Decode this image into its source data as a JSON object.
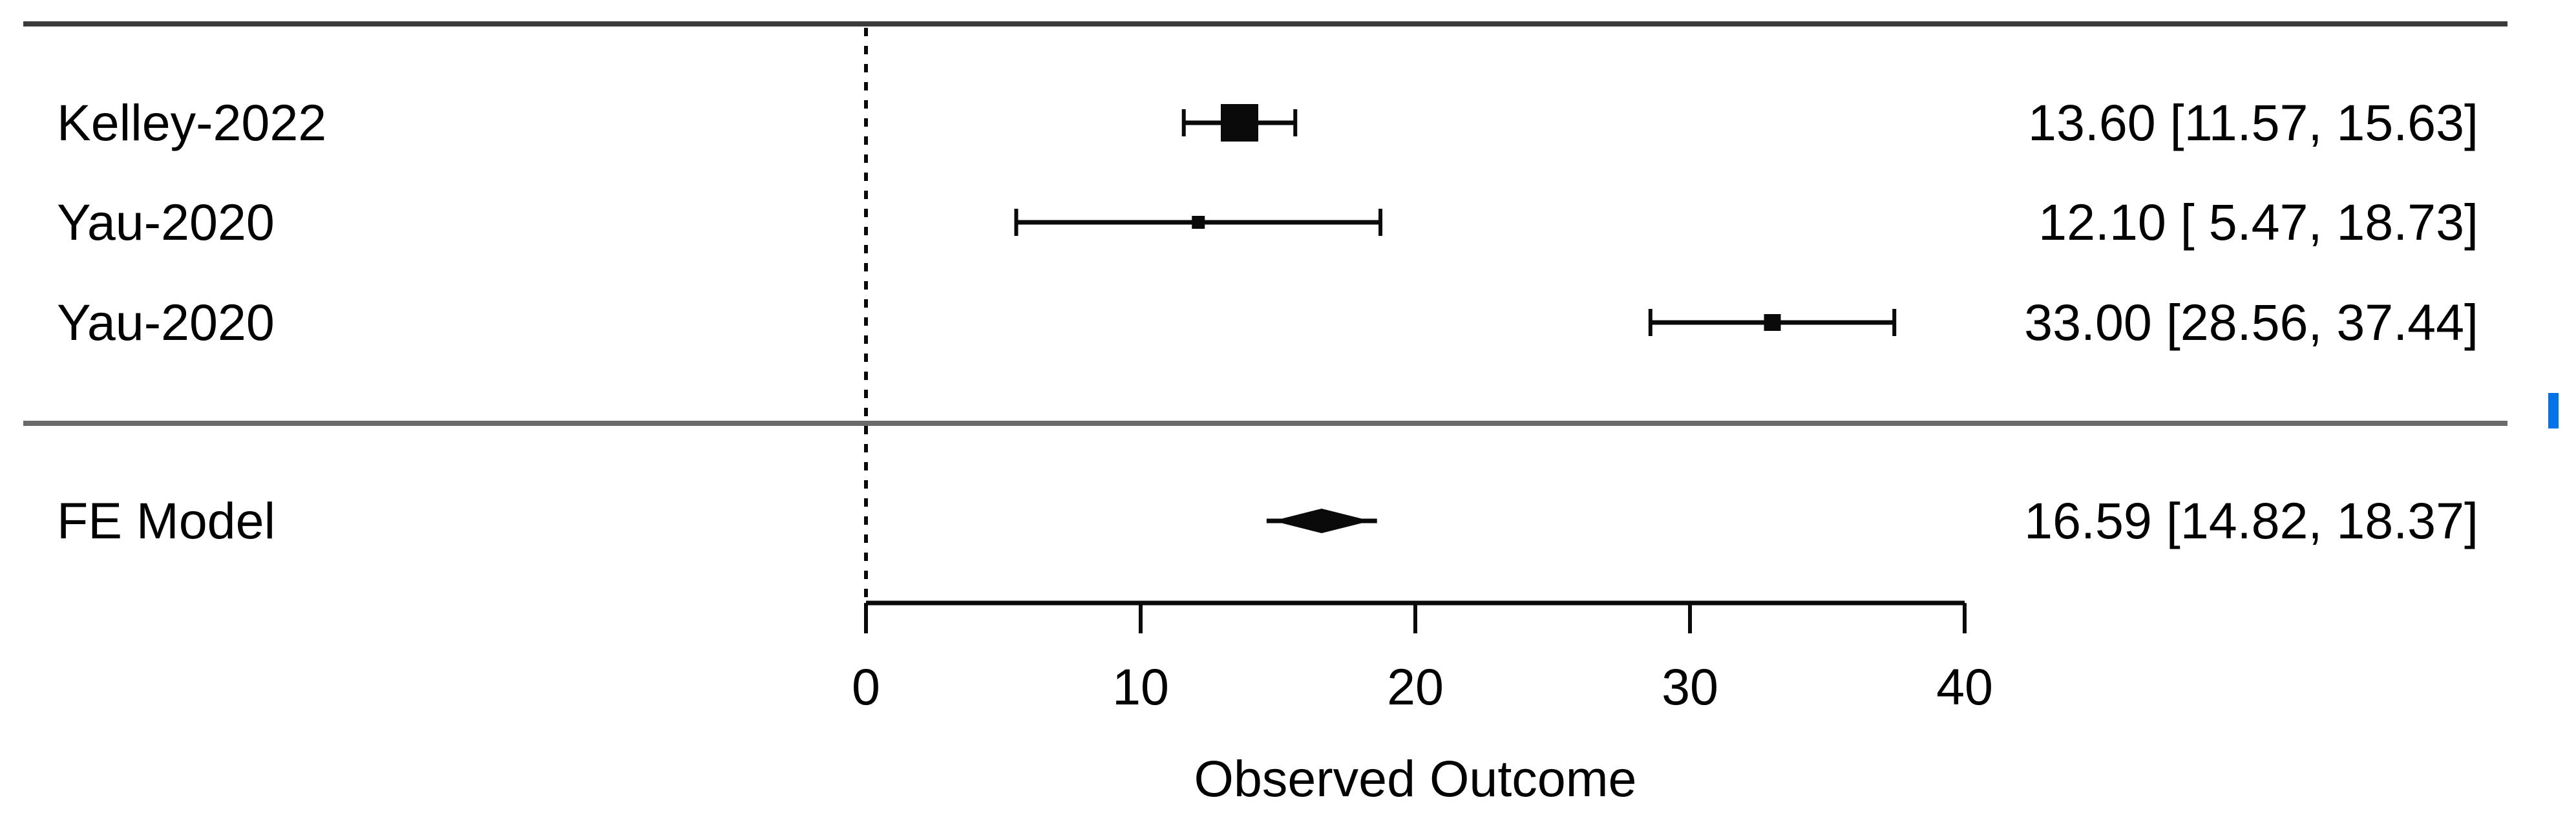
{
  "chart_data": {
    "type": "forest",
    "xlabel": "Observed Outcome",
    "x_ticks": [
      "0",
      "10",
      "20",
      "30",
      "40"
    ],
    "x_tick_values": [
      0,
      10,
      20,
      30,
      40
    ],
    "xlim": [
      0,
      40
    ],
    "reference_line_x": 0,
    "grid": false,
    "studies": [
      {
        "label": "Kelley-2022",
        "estimate": 13.6,
        "ci_low": 11.57,
        "ci_high": 15.63,
        "annotation": "13.60 [11.57, 15.63]",
        "marker_size_px": 58
      },
      {
        "label": "Yau-2020",
        "estimate": 12.1,
        "ci_low": 5.47,
        "ci_high": 18.73,
        "annotation": "12.10 [ 5.47, 18.73]",
        "marker_size_px": 20
      },
      {
        "label": "Yau-2020",
        "estimate": 33.0,
        "ci_low": 28.56,
        "ci_high": 37.44,
        "annotation": "33.00 [28.56, 37.44]",
        "marker_size_px": 26
      }
    ],
    "summary": {
      "label": "FE Model",
      "estimate": 16.59,
      "ci_low": 14.82,
      "ci_high": 18.37,
      "annotation": "16.59 [14.82, 18.37]"
    }
  },
  "colors": {
    "ink": "#0a0a0a",
    "rule_dark": "#3b3b3b",
    "rule_gray": "#6a6a6a",
    "blue_marker": "#0473e8"
  }
}
